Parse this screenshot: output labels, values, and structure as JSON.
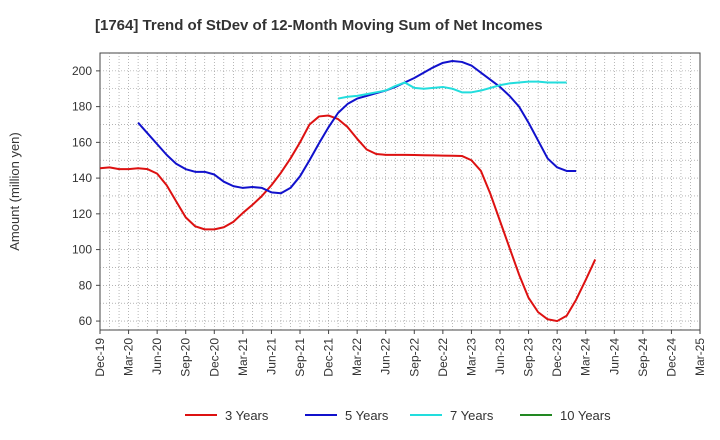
{
  "chart_data": {
    "type": "line",
    "title": "[1764]  Trend of StDev of 12-Month Moving Sum of Net Incomes",
    "xlabel": "",
    "ylabel": "Amount (million yen)",
    "ylim": [
      55,
      210
    ],
    "y_ticks": [
      60,
      80,
      100,
      120,
      140,
      160,
      180,
      200
    ],
    "x_ticks": [
      "Dec-19",
      "Mar-20",
      "Jun-20",
      "Sep-20",
      "Dec-20",
      "Mar-21",
      "Jun-21",
      "Sep-21",
      "Dec-21",
      "Mar-22",
      "Jun-22",
      "Sep-22",
      "Dec-22",
      "Mar-23",
      "Jun-23",
      "Sep-23",
      "Dec-23",
      "Mar-24",
      "Jun-24",
      "Sep-24",
      "Dec-24",
      "Mar-25"
    ],
    "grid": true,
    "legend_position": "bottom",
    "series": [
      {
        "name": "3 Years",
        "color": "#dd1111",
        "points": [
          [
            0,
            145.5
          ],
          [
            1,
            146
          ],
          [
            2,
            145
          ],
          [
            3,
            145
          ],
          [
            4,
            145.5
          ],
          [
            5,
            145
          ],
          [
            6,
            142.5
          ],
          [
            7,
            136
          ],
          [
            8,
            127
          ],
          [
            9,
            118
          ],
          [
            10,
            113
          ],
          [
            11,
            111.3
          ],
          [
            12,
            111.3
          ],
          [
            13,
            112.5
          ],
          [
            14,
            115.5
          ],
          [
            15,
            120.5
          ],
          [
            16,
            125
          ],
          [
            17,
            130
          ],
          [
            18,
            136
          ],
          [
            19,
            143
          ],
          [
            20,
            151
          ],
          [
            21,
            160
          ],
          [
            22,
            170
          ],
          [
            23,
            174.5
          ],
          [
            24,
            175
          ],
          [
            25,
            173
          ],
          [
            26,
            168.5
          ],
          [
            27,
            162
          ],
          [
            28,
            156
          ],
          [
            29,
            153.5
          ],
          [
            30,
            153
          ],
          [
            31,
            153
          ],
          [
            32,
            153
          ],
          [
            33,
            152.9
          ],
          [
            34,
            152.8
          ],
          [
            35,
            152.7
          ],
          [
            36,
            152.6
          ],
          [
            37,
            152.5
          ],
          [
            38,
            152.4
          ],
          [
            39,
            150
          ],
          [
            40,
            144
          ],
          [
            41,
            131
          ],
          [
            42,
            116
          ],
          [
            43,
            101
          ],
          [
            44,
            86
          ],
          [
            45,
            73
          ],
          [
            46,
            65
          ],
          [
            47,
            61
          ],
          [
            48,
            60
          ],
          [
            49,
            63
          ],
          [
            50,
            72
          ],
          [
            51,
            83
          ],
          [
            52,
            94.5
          ]
        ]
      },
      {
        "name": "5 Years",
        "color": "#1111cc",
        "points": [
          [
            4,
            171
          ],
          [
            5,
            165
          ],
          [
            6,
            159
          ],
          [
            7,
            153
          ],
          [
            8,
            148
          ],
          [
            9,
            145
          ],
          [
            10,
            143.5
          ],
          [
            11,
            143.5
          ],
          [
            12,
            142
          ],
          [
            13,
            138
          ],
          [
            14,
            135.5
          ],
          [
            15,
            134.5
          ],
          [
            16,
            135
          ],
          [
            17,
            134.5
          ],
          [
            18,
            132
          ],
          [
            19,
            131.5
          ],
          [
            20,
            134.5
          ],
          [
            21,
            141
          ],
          [
            22,
            150
          ],
          [
            23,
            159.5
          ],
          [
            24,
            168.5
          ],
          [
            25,
            176.5
          ],
          [
            26,
            181.5
          ],
          [
            27,
            184.5
          ],
          [
            28,
            186
          ],
          [
            29,
            187.5
          ],
          [
            30,
            189
          ],
          [
            31,
            191
          ],
          [
            32,
            193.5
          ],
          [
            33,
            196
          ],
          [
            34,
            199
          ],
          [
            35,
            202
          ],
          [
            36,
            204.5
          ],
          [
            37,
            205.5
          ],
          [
            38,
            205
          ],
          [
            39,
            203
          ],
          [
            40,
            199
          ],
          [
            41,
            195
          ],
          [
            42,
            191
          ],
          [
            43,
            186
          ],
          [
            44,
            180
          ],
          [
            45,
            171
          ],
          [
            46,
            161
          ],
          [
            47,
            151
          ],
          [
            48,
            146
          ],
          [
            49,
            144
          ],
          [
            50,
            144
          ]
        ]
      },
      {
        "name": "7 Years",
        "color": "#22dddd",
        "points": [
          [
            25,
            184.5
          ],
          [
            26,
            185.5
          ],
          [
            27,
            186
          ],
          [
            28,
            187
          ],
          [
            29,
            188
          ],
          [
            30,
            189
          ],
          [
            31,
            191.5
          ],
          [
            32,
            193.5
          ],
          [
            33,
            190.5
          ],
          [
            34,
            190
          ],
          [
            35,
            190.5
          ],
          [
            36,
            191
          ],
          [
            37,
            190
          ],
          [
            38,
            188
          ],
          [
            39,
            188
          ],
          [
            40,
            189
          ],
          [
            41,
            190.5
          ],
          [
            42,
            192
          ],
          [
            43,
            193
          ],
          [
            44,
            193.5
          ],
          [
            45,
            194
          ],
          [
            46,
            194
          ],
          [
            47,
            193.5
          ],
          [
            48,
            193.5
          ],
          [
            49,
            193.5
          ]
        ]
      },
      {
        "name": "10 Years",
        "color": "#228822",
        "points": []
      }
    ]
  }
}
